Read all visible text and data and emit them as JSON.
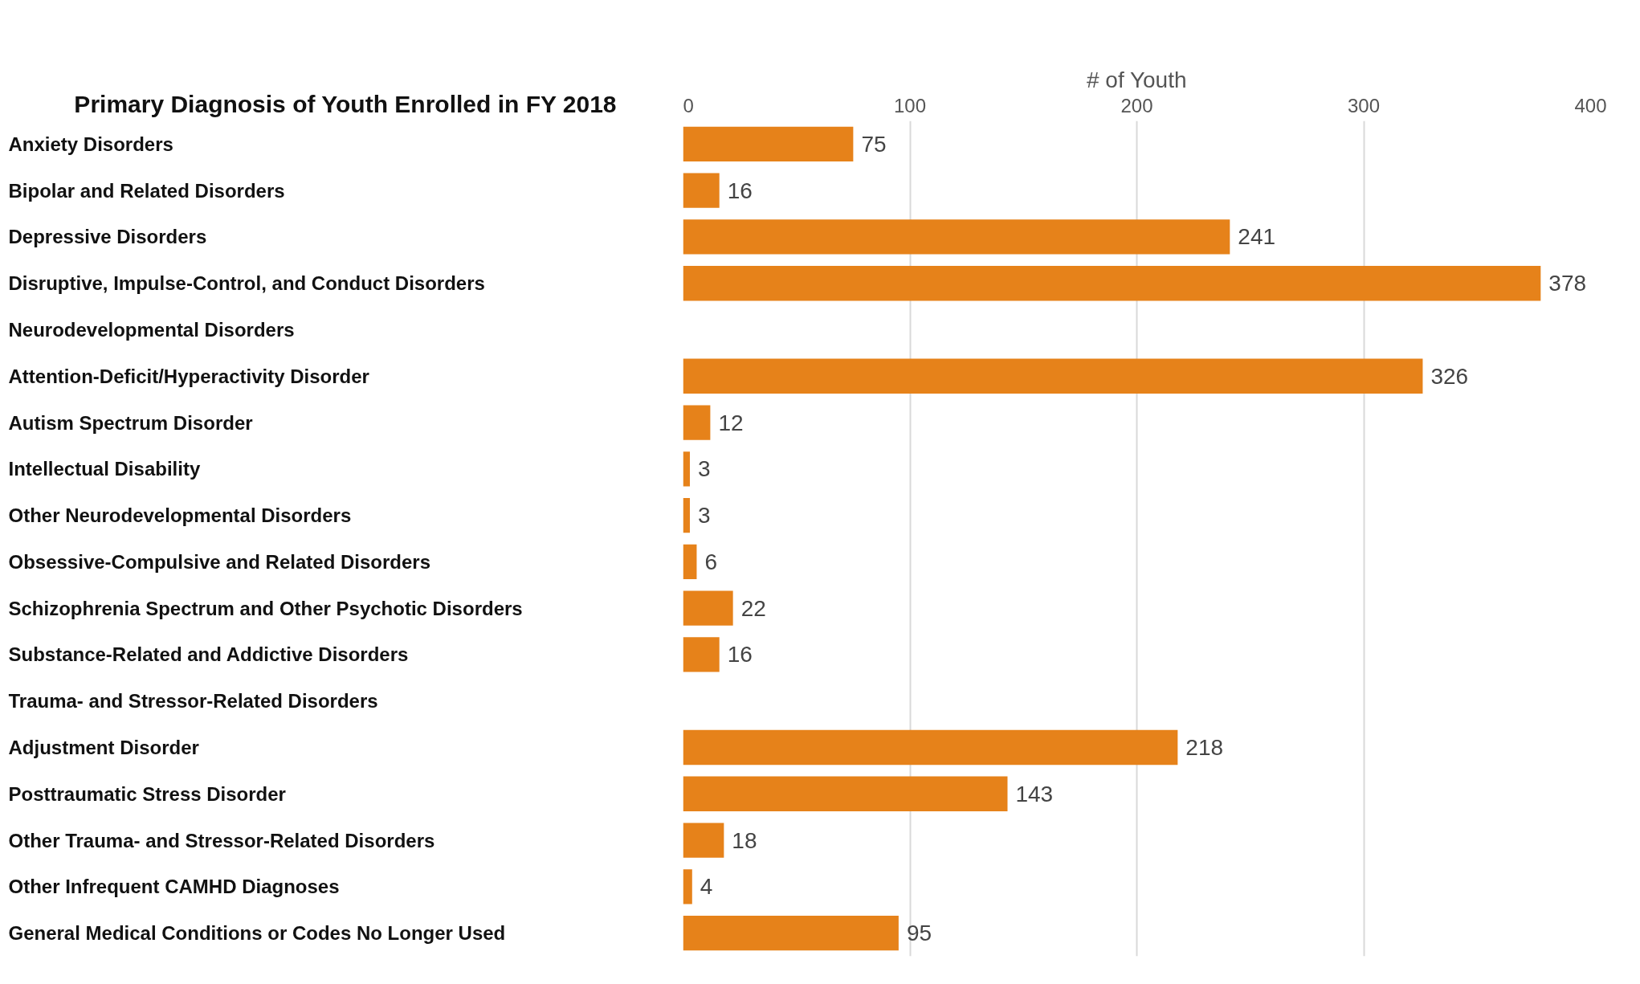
{
  "chart_data": {
    "type": "bar",
    "orientation": "horizontal",
    "title": "Primary Diagnosis of Youth Enrolled in FY 2018",
    "xlabel": "# of Youth",
    "categories": [
      "Anxiety Disorders",
      "Bipolar and Related Disorders",
      "Depressive Disorders",
      "Disruptive, Impulse-Control, and Conduct Disorders",
      "Neurodevelopmental Disorders",
      "Attention-Deficit/Hyperactivity Disorder",
      "Autism Spectrum Disorder",
      "Intellectual Disability",
      "Other Neurodevelopmental Disorders",
      "Obsessive-Compulsive and Related Disorders",
      "Schizophrenia Spectrum and Other Psychotic Disorders",
      "Substance-Related and Addictive Disorders",
      "Trauma- and Stressor-Related Disorders",
      "Adjustment Disorder",
      "Posttraumatic Stress Disorder",
      "Other Trauma- and Stressor-Related Disorders",
      "Other Infrequent CAMHD Diagnoses",
      "General Medical Conditions or Codes No Longer Used"
    ],
    "values": [
      75,
      16,
      241,
      378,
      null,
      326,
      12,
      3,
      3,
      6,
      22,
      16,
      null,
      218,
      143,
      18,
      4,
      95
    ],
    "color": "#e6821a",
    "xlim": [
      0,
      400
    ],
    "xticks": [
      0,
      100,
      200,
      300,
      400
    ],
    "grid": "x",
    "data_labels": true
  }
}
